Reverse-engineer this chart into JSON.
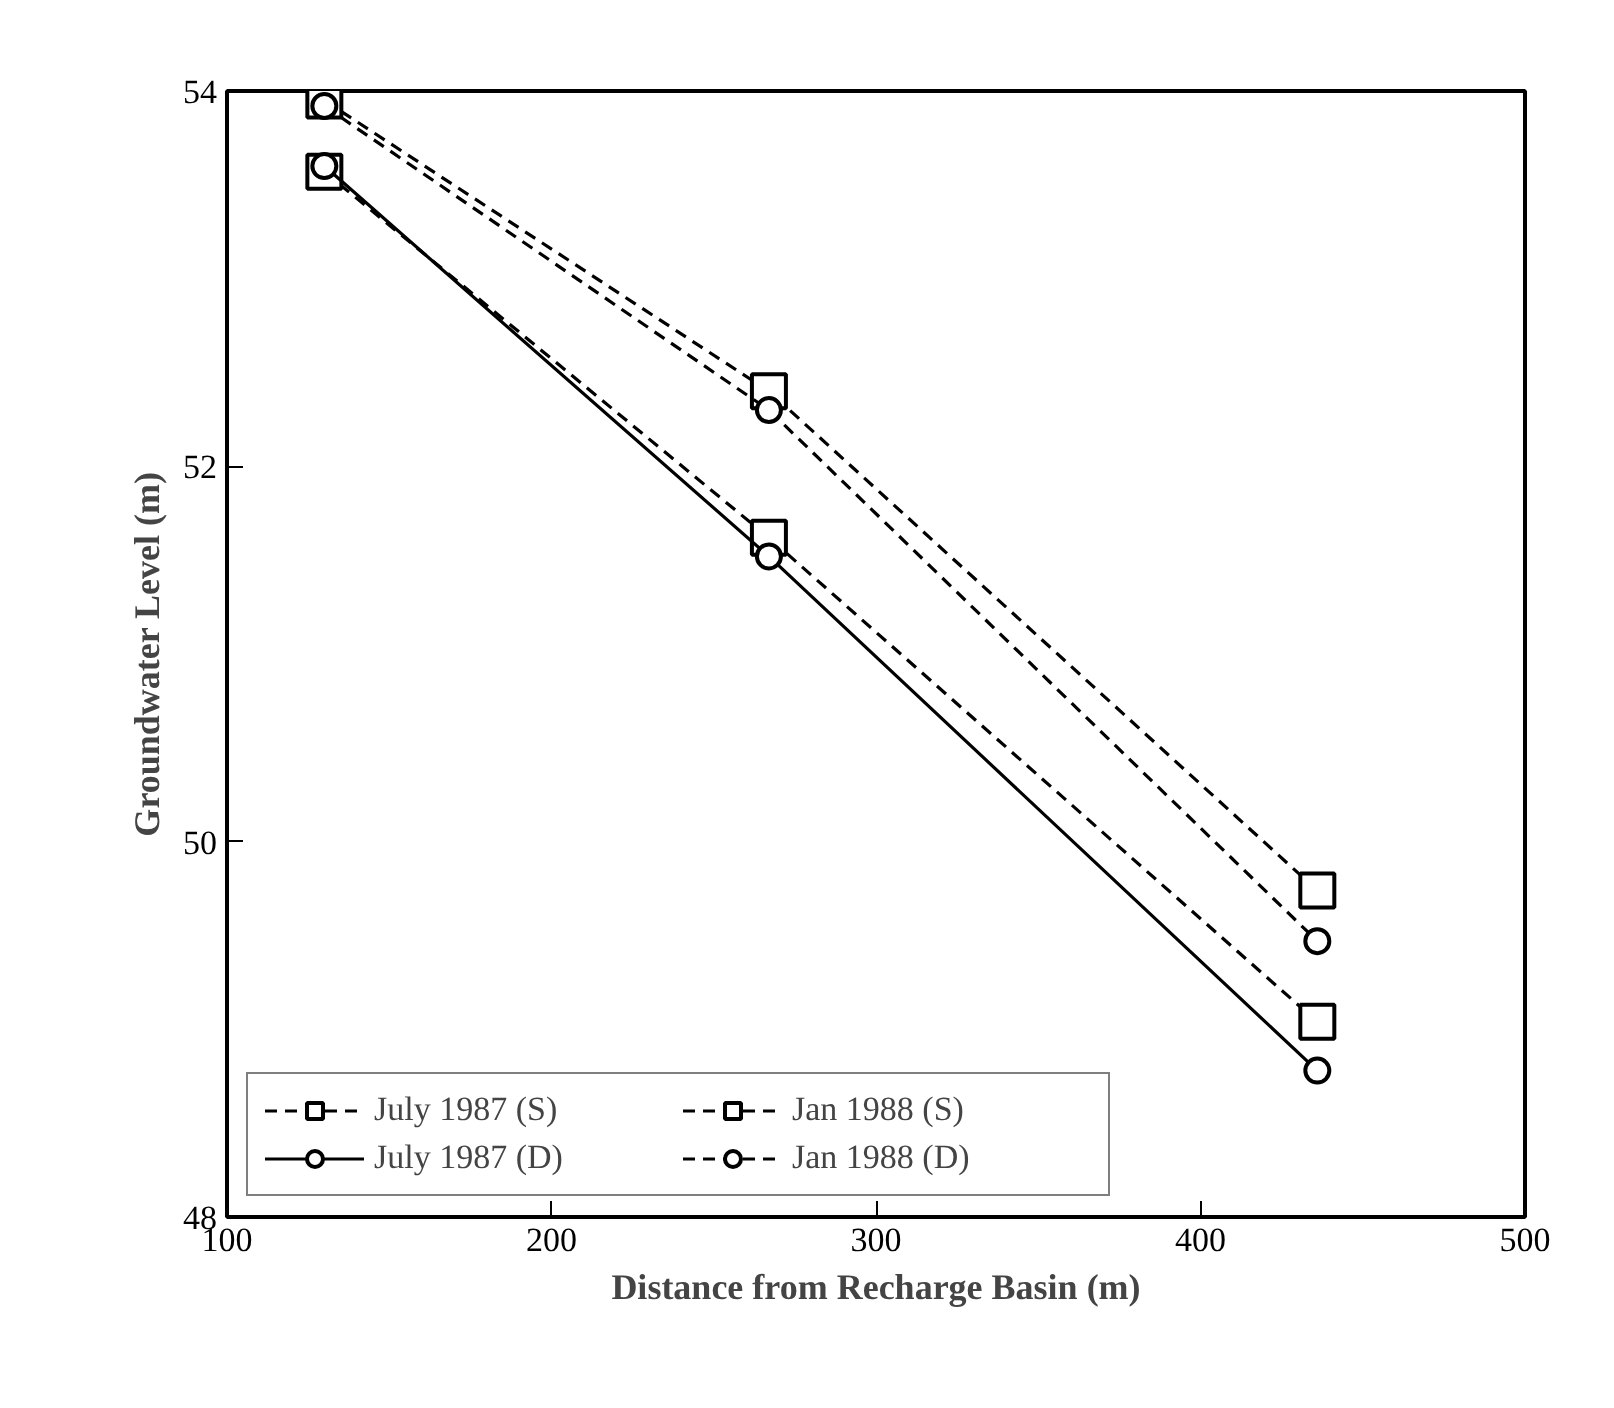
{
  "chart_data": {
    "type": "line",
    "xlabel": "Distance from Recharge Basin (m)",
    "ylabel": "Groundwater Level (m)",
    "x": [
      130,
      267,
      436
    ],
    "series": [
      {
        "name": "July 1987 (S)",
        "color": "#000000",
        "values": [
          53.57,
          51.62,
          49.04
        ],
        "marker": "square",
        "line_style": "dashed"
      },
      {
        "name": "July 1987 (D)",
        "color": "#000000",
        "values": [
          53.6,
          51.52,
          48.78
        ],
        "marker": "circle",
        "line_style": "solid"
      },
      {
        "name": "Jan 1988 (S)",
        "color": "#000000",
        "values": [
          53.95,
          52.4,
          49.74
        ],
        "marker": "square",
        "line_style": "dashed"
      },
      {
        "name": "Jan 1988 (D)",
        "color": "#000000",
        "values": [
          53.92,
          52.3,
          49.47
        ],
        "marker": "circle",
        "line_style": "dashed"
      }
    ],
    "xlim": [
      100,
      500
    ],
    "ylim": [
      48,
      54
    ],
    "xticks": [
      100,
      200,
      300,
      400,
      500
    ],
    "yticks": [
      48,
      50,
      52,
      54
    ],
    "grid": false,
    "legend": "bottom left"
  }
}
